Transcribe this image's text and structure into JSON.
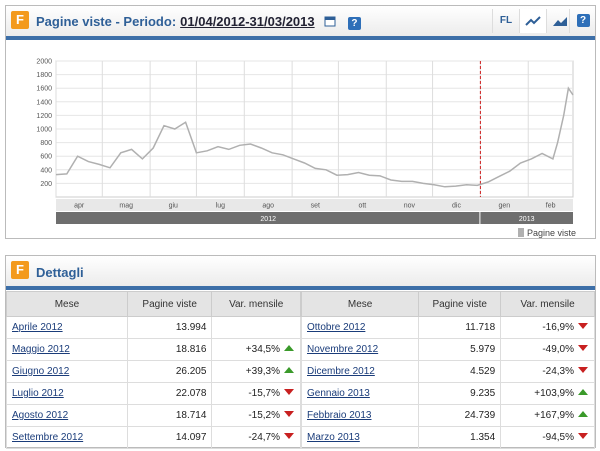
{
  "header": {
    "title": "Pagine viste - Periodo:",
    "period": "01/04/2012-31/03/2013",
    "fl": "FL"
  },
  "chart_data": {
    "type": "line",
    "color": "#b0b0b0",
    "x": [
      0,
      7,
      14,
      21,
      28,
      35,
      42,
      49,
      56,
      63,
      70,
      77,
      84,
      91,
      98,
      105,
      112,
      119,
      126,
      133,
      140,
      147,
      154,
      161,
      168,
      175,
      182,
      189,
      196,
      203,
      210,
      217,
      224,
      231,
      238,
      245,
      252,
      259,
      266,
      273,
      280,
      287,
      294,
      301,
      308,
      315,
      322,
      325,
      329,
      332,
      335
    ],
    "values": [
      330,
      340,
      600,
      520,
      480,
      430,
      650,
      700,
      560,
      720,
      1050,
      1000,
      1100,
      650,
      680,
      740,
      700,
      760,
      780,
      720,
      650,
      620,
      560,
      500,
      420,
      400,
      320,
      330,
      360,
      320,
      310,
      250,
      230,
      230,
      200,
      180,
      150,
      160,
      180,
      170,
      220,
      300,
      380,
      500,
      560,
      640,
      560,
      800,
      1200,
      1600,
      1500
    ],
    "xlim": [
      0,
      335
    ],
    "ylim": [
      0,
      2000
    ],
    "yticks": [
      200,
      400,
      600,
      800,
      1000,
      1200,
      1400,
      1600,
      1800,
      2000
    ],
    "xticks": [
      {
        "value": 0,
        "label": "apr"
      },
      {
        "value": 30,
        "label": "mag"
      },
      {
        "value": 61,
        "label": "giu"
      },
      {
        "value": 91,
        "label": "lug"
      },
      {
        "value": 122,
        "label": "ago"
      },
      {
        "value": 153,
        "label": "set"
      },
      {
        "value": 183,
        "label": "ott"
      },
      {
        "value": 214,
        "label": "nov"
      },
      {
        "value": 244,
        "label": "dic"
      },
      {
        "value": 275,
        "label": "gen"
      },
      {
        "value": 306,
        "label": "feb"
      }
    ],
    "years": [
      "2012",
      "2013"
    ],
    "year_split": 275,
    "legend": "Pagine viste",
    "grid": true
  },
  "details": {
    "title": "Dettagli",
    "columns": [
      "Mese",
      "Pagine viste",
      "Var. mensile"
    ],
    "rows": [
      [
        "Aprile 2012",
        "13.994",
        null
      ],
      [
        "Maggio 2012",
        "18.816",
        "+34,5%"
      ],
      [
        "Giugno 2012",
        "26.205",
        "+39,3%"
      ],
      [
        "Luglio 2012",
        "22.078",
        "-15,7%"
      ],
      [
        "Agosto 2012",
        "18.714",
        "-15,2%"
      ],
      [
        "Settembre 2012",
        "14.097",
        "-24,7%"
      ],
      [
        "Ottobre 2012",
        "11.718",
        "-16,9%"
      ],
      [
        "Novembre 2012",
        "5.979",
        "-49,0%"
      ],
      [
        "Dicembre 2012",
        "4.529",
        "-24,3%"
      ],
      [
        "Gennaio 2013",
        "9.235",
        "+103,9%"
      ],
      [
        "Febbraio 2013",
        "24.739",
        "+167,9%"
      ],
      [
        "Marzo 2013",
        "1.354",
        "-94,5%"
      ]
    ]
  }
}
